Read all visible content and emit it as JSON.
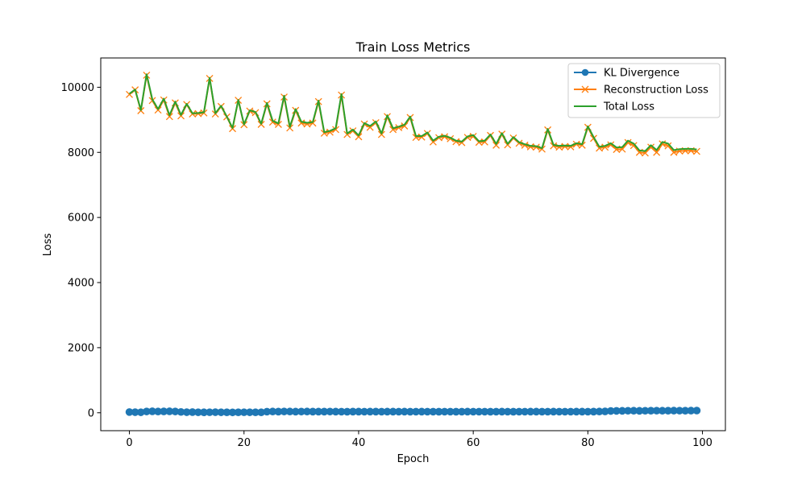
{
  "chart_data": {
    "type": "line",
    "title": "Train Loss Metrics",
    "xlabel": "Epoch",
    "ylabel": "Loss",
    "xlim": [
      -5.0,
      104.0
    ],
    "ylim": [
      -550,
      10900
    ],
    "xticks": [
      0,
      20,
      40,
      60,
      80,
      100
    ],
    "yticks": [
      0,
      2000,
      4000,
      6000,
      8000,
      10000
    ],
    "grid": false,
    "legend_position": "top-right",
    "series": [
      {
        "name": "KL Divergence",
        "color": "#1f77b4",
        "marker": "circle",
        "x": [
          0,
          1,
          2,
          3,
          4,
          5,
          6,
          7,
          8,
          9,
          10,
          11,
          12,
          13,
          14,
          15,
          16,
          17,
          18,
          19,
          20,
          21,
          22,
          23,
          24,
          25,
          26,
          27,
          28,
          29,
          30,
          31,
          32,
          33,
          34,
          35,
          36,
          37,
          38,
          39,
          40,
          41,
          42,
          43,
          44,
          45,
          46,
          47,
          48,
          49,
          50,
          51,
          52,
          53,
          54,
          55,
          56,
          57,
          58,
          59,
          60,
          61,
          62,
          63,
          64,
          65,
          66,
          67,
          68,
          69,
          70,
          71,
          72,
          73,
          74,
          75,
          76,
          77,
          78,
          79,
          80,
          81,
          82,
          83,
          84,
          85,
          86,
          87,
          88,
          89,
          90,
          91,
          92,
          93,
          94,
          95,
          96,
          97,
          98,
          99
        ],
        "values": [
          22,
          18,
          15,
          40,
          45,
          38,
          42,
          44,
          40,
          25,
          18,
          20,
          15,
          14,
          16,
          18,
          15,
          14,
          12,
          14,
          16,
          15,
          14,
          13,
          34,
          38,
          36,
          40,
          38,
          35,
          37,
          38,
          36,
          35,
          36,
          37,
          35,
          34,
          33,
          36,
          35,
          34,
          35,
          36,
          34,
          35,
          35,
          34,
          35,
          33,
          34,
          35,
          34,
          34,
          33,
          34,
          34,
          33,
          34,
          35,
          34,
          34,
          34,
          33,
          34,
          35,
          34,
          33,
          34,
          34,
          35,
          35,
          34,
          34,
          35,
          34,
          34,
          34,
          35,
          35,
          34,
          36,
          38,
          42,
          55,
          58,
          60,
          62,
          63,
          60,
          62,
          64,
          65,
          63,
          64,
          66,
          65,
          64,
          66,
          68
        ]
      },
      {
        "name": "Reconstruction Loss",
        "color": "#ff7f0e",
        "marker": "x",
        "x": [
          0,
          1,
          2,
          3,
          4,
          5,
          6,
          7,
          8,
          9,
          10,
          11,
          12,
          13,
          14,
          15,
          16,
          17,
          18,
          19,
          20,
          21,
          22,
          23,
          24,
          25,
          26,
          27,
          28,
          29,
          30,
          31,
          32,
          33,
          34,
          35,
          36,
          37,
          38,
          39,
          40,
          41,
          42,
          43,
          44,
          45,
          46,
          47,
          48,
          49,
          50,
          51,
          52,
          53,
          54,
          55,
          56,
          57,
          58,
          59,
          60,
          61,
          62,
          63,
          64,
          65,
          66,
          67,
          68,
          69,
          70,
          71,
          72,
          73,
          74,
          75,
          76,
          77,
          78,
          79,
          80,
          81,
          82,
          83,
          84,
          85,
          86,
          87,
          88,
          89,
          90,
          91,
          92,
          93,
          94,
          95,
          96,
          97,
          98,
          99
        ],
        "values": [
          9780,
          9920,
          9280,
          10370,
          9590,
          9300,
          9610,
          9100,
          9520,
          9120,
          9470,
          9180,
          9190,
          9210,
          10270,
          9180,
          9410,
          9090,
          8730,
          9600,
          8850,
          9270,
          9220,
          8860,
          9490,
          8930,
          8860,
          9700,
          8750,
          9290,
          8900,
          8870,
          8900,
          9560,
          8590,
          8620,
          8700,
          9760,
          8550,
          8660,
          8480,
          8870,
          8770,
          8910,
          8550,
          9100,
          8700,
          8760,
          8810,
          9070,
          8460,
          8470,
          8580,
          8320,
          8450,
          8480,
          8420,
          8330,
          8300,
          8460,
          8490,
          8310,
          8320,
          8520,
          8220,
          8560,
          8230,
          8440,
          8280,
          8220,
          8170,
          8160,
          8100,
          8690,
          8200,
          8160,
          8180,
          8170,
          8250,
          8220,
          8770,
          8430,
          8130,
          8160,
          8230,
          8090,
          8100,
          8300,
          8210,
          8000,
          7980,
          8160,
          8000,
          8260,
          8200,
          8000,
          8040,
          8050,
          8050,
          8030
        ]
      },
      {
        "name": "Total Loss",
        "color": "#2ca02c",
        "marker": "none",
        "x": [
          0,
          1,
          2,
          3,
          4,
          5,
          6,
          7,
          8,
          9,
          10,
          11,
          12,
          13,
          14,
          15,
          16,
          17,
          18,
          19,
          20,
          21,
          22,
          23,
          24,
          25,
          26,
          27,
          28,
          29,
          30,
          31,
          32,
          33,
          34,
          35,
          36,
          37,
          38,
          39,
          40,
          41,
          42,
          43,
          44,
          45,
          46,
          47,
          48,
          49,
          50,
          51,
          52,
          53,
          54,
          55,
          56,
          57,
          58,
          59,
          60,
          61,
          62,
          63,
          64,
          65,
          66,
          67,
          68,
          69,
          70,
          71,
          72,
          73,
          74,
          75,
          76,
          77,
          78,
          79,
          80,
          81,
          82,
          83,
          84,
          85,
          86,
          87,
          88,
          89,
          90,
          91,
          92,
          93,
          94,
          95,
          96,
          97,
          98,
          99
        ],
        "values": [
          9800,
          9930,
          9300,
          10400,
          9630,
          9330,
          9650,
          9140,
          9560,
          9150,
          9490,
          9200,
          9210,
          9230,
          10290,
          9200,
          9430,
          9100,
          8750,
          9610,
          8860,
          9290,
          9240,
          8880,
          9520,
          8970,
          8890,
          9740,
          8780,
          9330,
          8940,
          8910,
          8930,
          9590,
          8620,
          8660,
          8740,
          9790,
          8580,
          8700,
          8520,
          8900,
          8810,
          8950,
          8580,
          9140,
          8740,
          8790,
          8850,
          9100,
          8500,
          8500,
          8610,
          8360,
          8480,
          8510,
          8450,
          8360,
          8330,
          8490,
          8530,
          8340,
          8360,
          8550,
          8260,
          8590,
          8260,
          8470,
          8310,
          8250,
          8200,
          8190,
          8130,
          8720,
          8230,
          8200,
          8210,
          8200,
          8280,
          8250,
          8800,
          8470,
          8170,
          8200,
          8280,
          8150,
          8160,
          8360,
          8270,
          8060,
          8040,
          8220,
          8070,
          8320,
          8270,
          8070,
          8100,
          8110,
          8110,
          8090
        ]
      }
    ]
  }
}
